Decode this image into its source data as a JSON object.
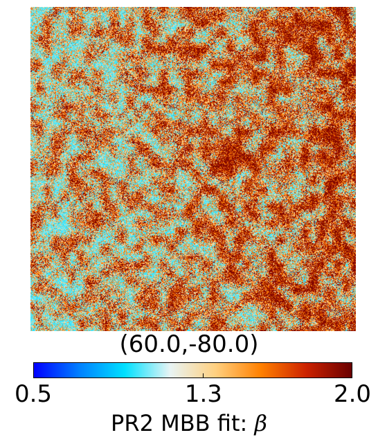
{
  "map": {
    "title": "(60.0,-80.0)",
    "value_range": [
      0.5,
      2.0
    ],
    "colormap": [
      "#0000ff",
      "#0080ff",
      "#00e0ff",
      "#e8f4f4",
      "#ffd080",
      "#ff8000",
      "#cc2200",
      "#6a0000"
    ]
  },
  "colorbar": {
    "label_prefix": "PR2 MBB fit: ",
    "label_symbol": "β",
    "ticks": [
      {
        "value": 0.5,
        "label": "0.5"
      },
      {
        "value": 1.3,
        "label": "1.3"
      },
      {
        "value": 2.0,
        "label": "2.0"
      }
    ]
  }
}
